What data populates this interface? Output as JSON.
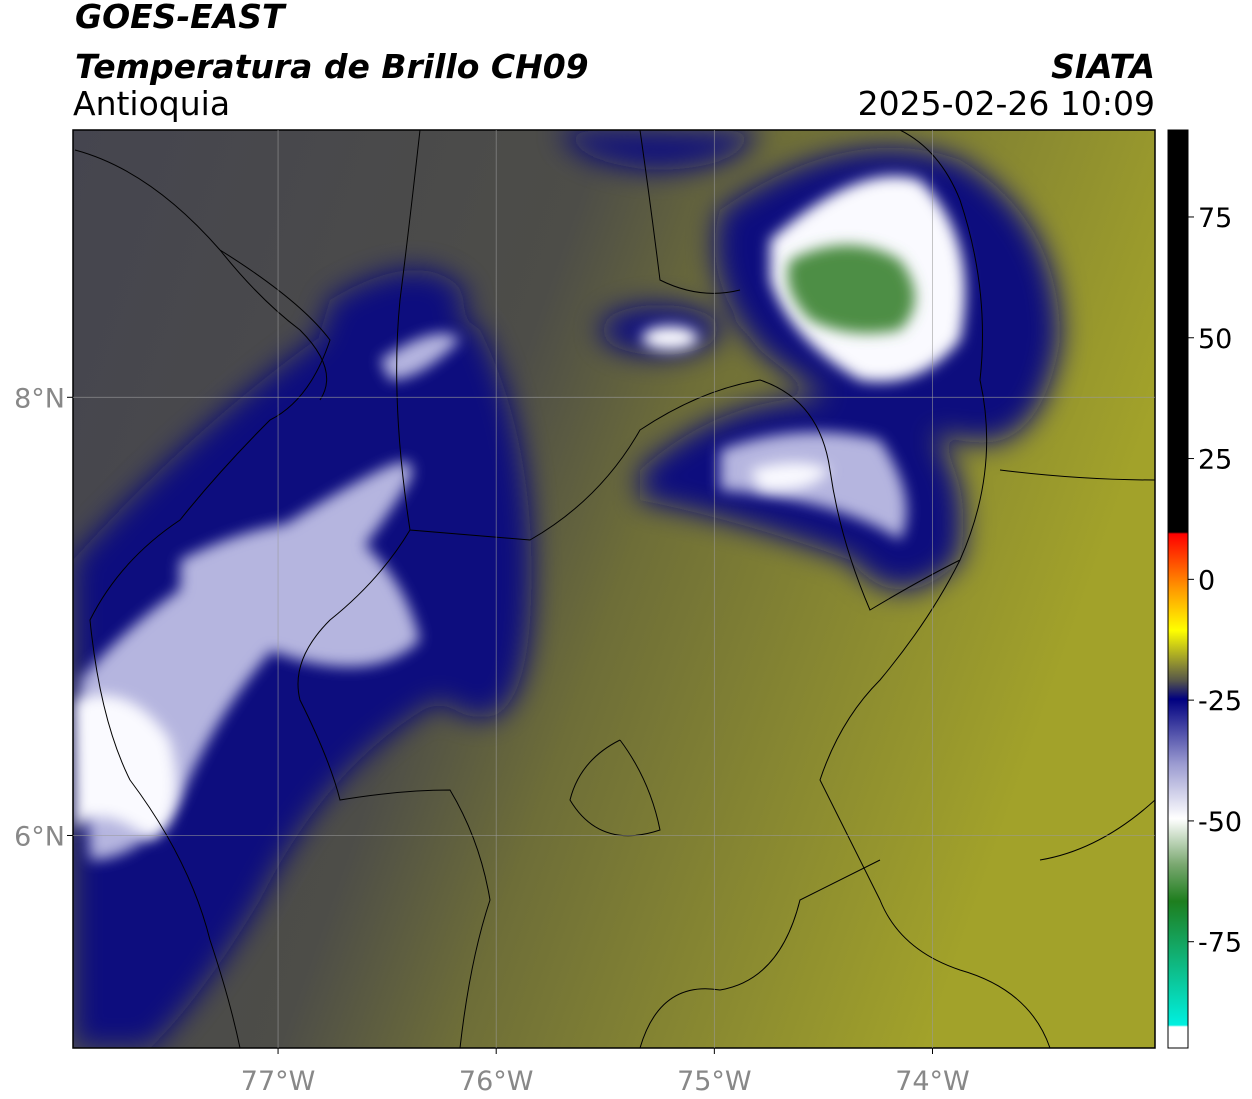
{
  "header": {
    "title": "GOES-EAST",
    "subtitle": "Temperatura de Brillo CH09",
    "region": "Antioquia",
    "source": "SIATA",
    "datetime": "2025-02-26 10:09"
  },
  "map": {
    "xlim": [
      -77.94,
      -72.98
    ],
    "ylim": [
      5.03,
      9.22
    ],
    "xticks": [
      {
        "value": -77,
        "label": "77°W"
      },
      {
        "value": -76,
        "label": "76°W"
      },
      {
        "value": -75,
        "label": "75°W"
      },
      {
        "value": -74,
        "label": "74°W"
      }
    ],
    "yticks": [
      {
        "value": 6,
        "label": "6°N"
      },
      {
        "value": 8,
        "label": "8°N"
      }
    ],
    "grid": true
  },
  "colorbar": {
    "lim": [
      -97,
      93
    ],
    "ticks": [
      75,
      50,
      25,
      0,
      -25,
      -50,
      -75
    ]
  }
}
